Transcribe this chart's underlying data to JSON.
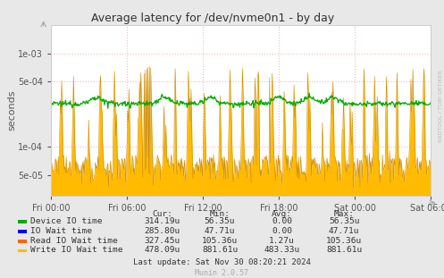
{
  "title": "Average latency for /dev/nvme0n1 - by day",
  "ylabel": "seconds",
  "bg_color": "#e8e8e8",
  "plot_bg_color": "#ffffff",
  "grid_color_major": "#ffaaaa",
  "grid_color_minor": "#ffcccc",
  "x_ticks_labels": [
    "Fri 00:00",
    "Fri 06:00",
    "Fri 12:00",
    "Fri 18:00",
    "Sat 00:00",
    "Sat 06:00"
  ],
  "legend_items": [
    {
      "label": "Device IO time",
      "color": "#00aa00"
    },
    {
      "label": "IO Wait time",
      "color": "#0000ff"
    },
    {
      "label": "Read IO Wait time",
      "color": "#ff6600"
    },
    {
      "label": "Write IO Wait time",
      "color": "#ffbb00"
    }
  ],
  "col_headers": [
    "Cur:",
    "Min:",
    "Avg:",
    "Max:"
  ],
  "col_values": [
    [
      "314.19u",
      "56.35u",
      "0.00",
      "56.35u"
    ],
    [
      "285.80u",
      "47.71u",
      "0.00",
      "47.71u"
    ],
    [
      "327.45u",
      "105.36u",
      "1.27u",
      "105.36u"
    ],
    [
      "478.09u",
      "881.61u",
      "483.33u",
      "881.61u"
    ]
  ],
  "last_update": "Last update: Sat Nov 30 08:20:21 2024",
  "munin_version": "Munin 2.0.57",
  "watermark": "RRDTOOL / TOBI OETIKER"
}
